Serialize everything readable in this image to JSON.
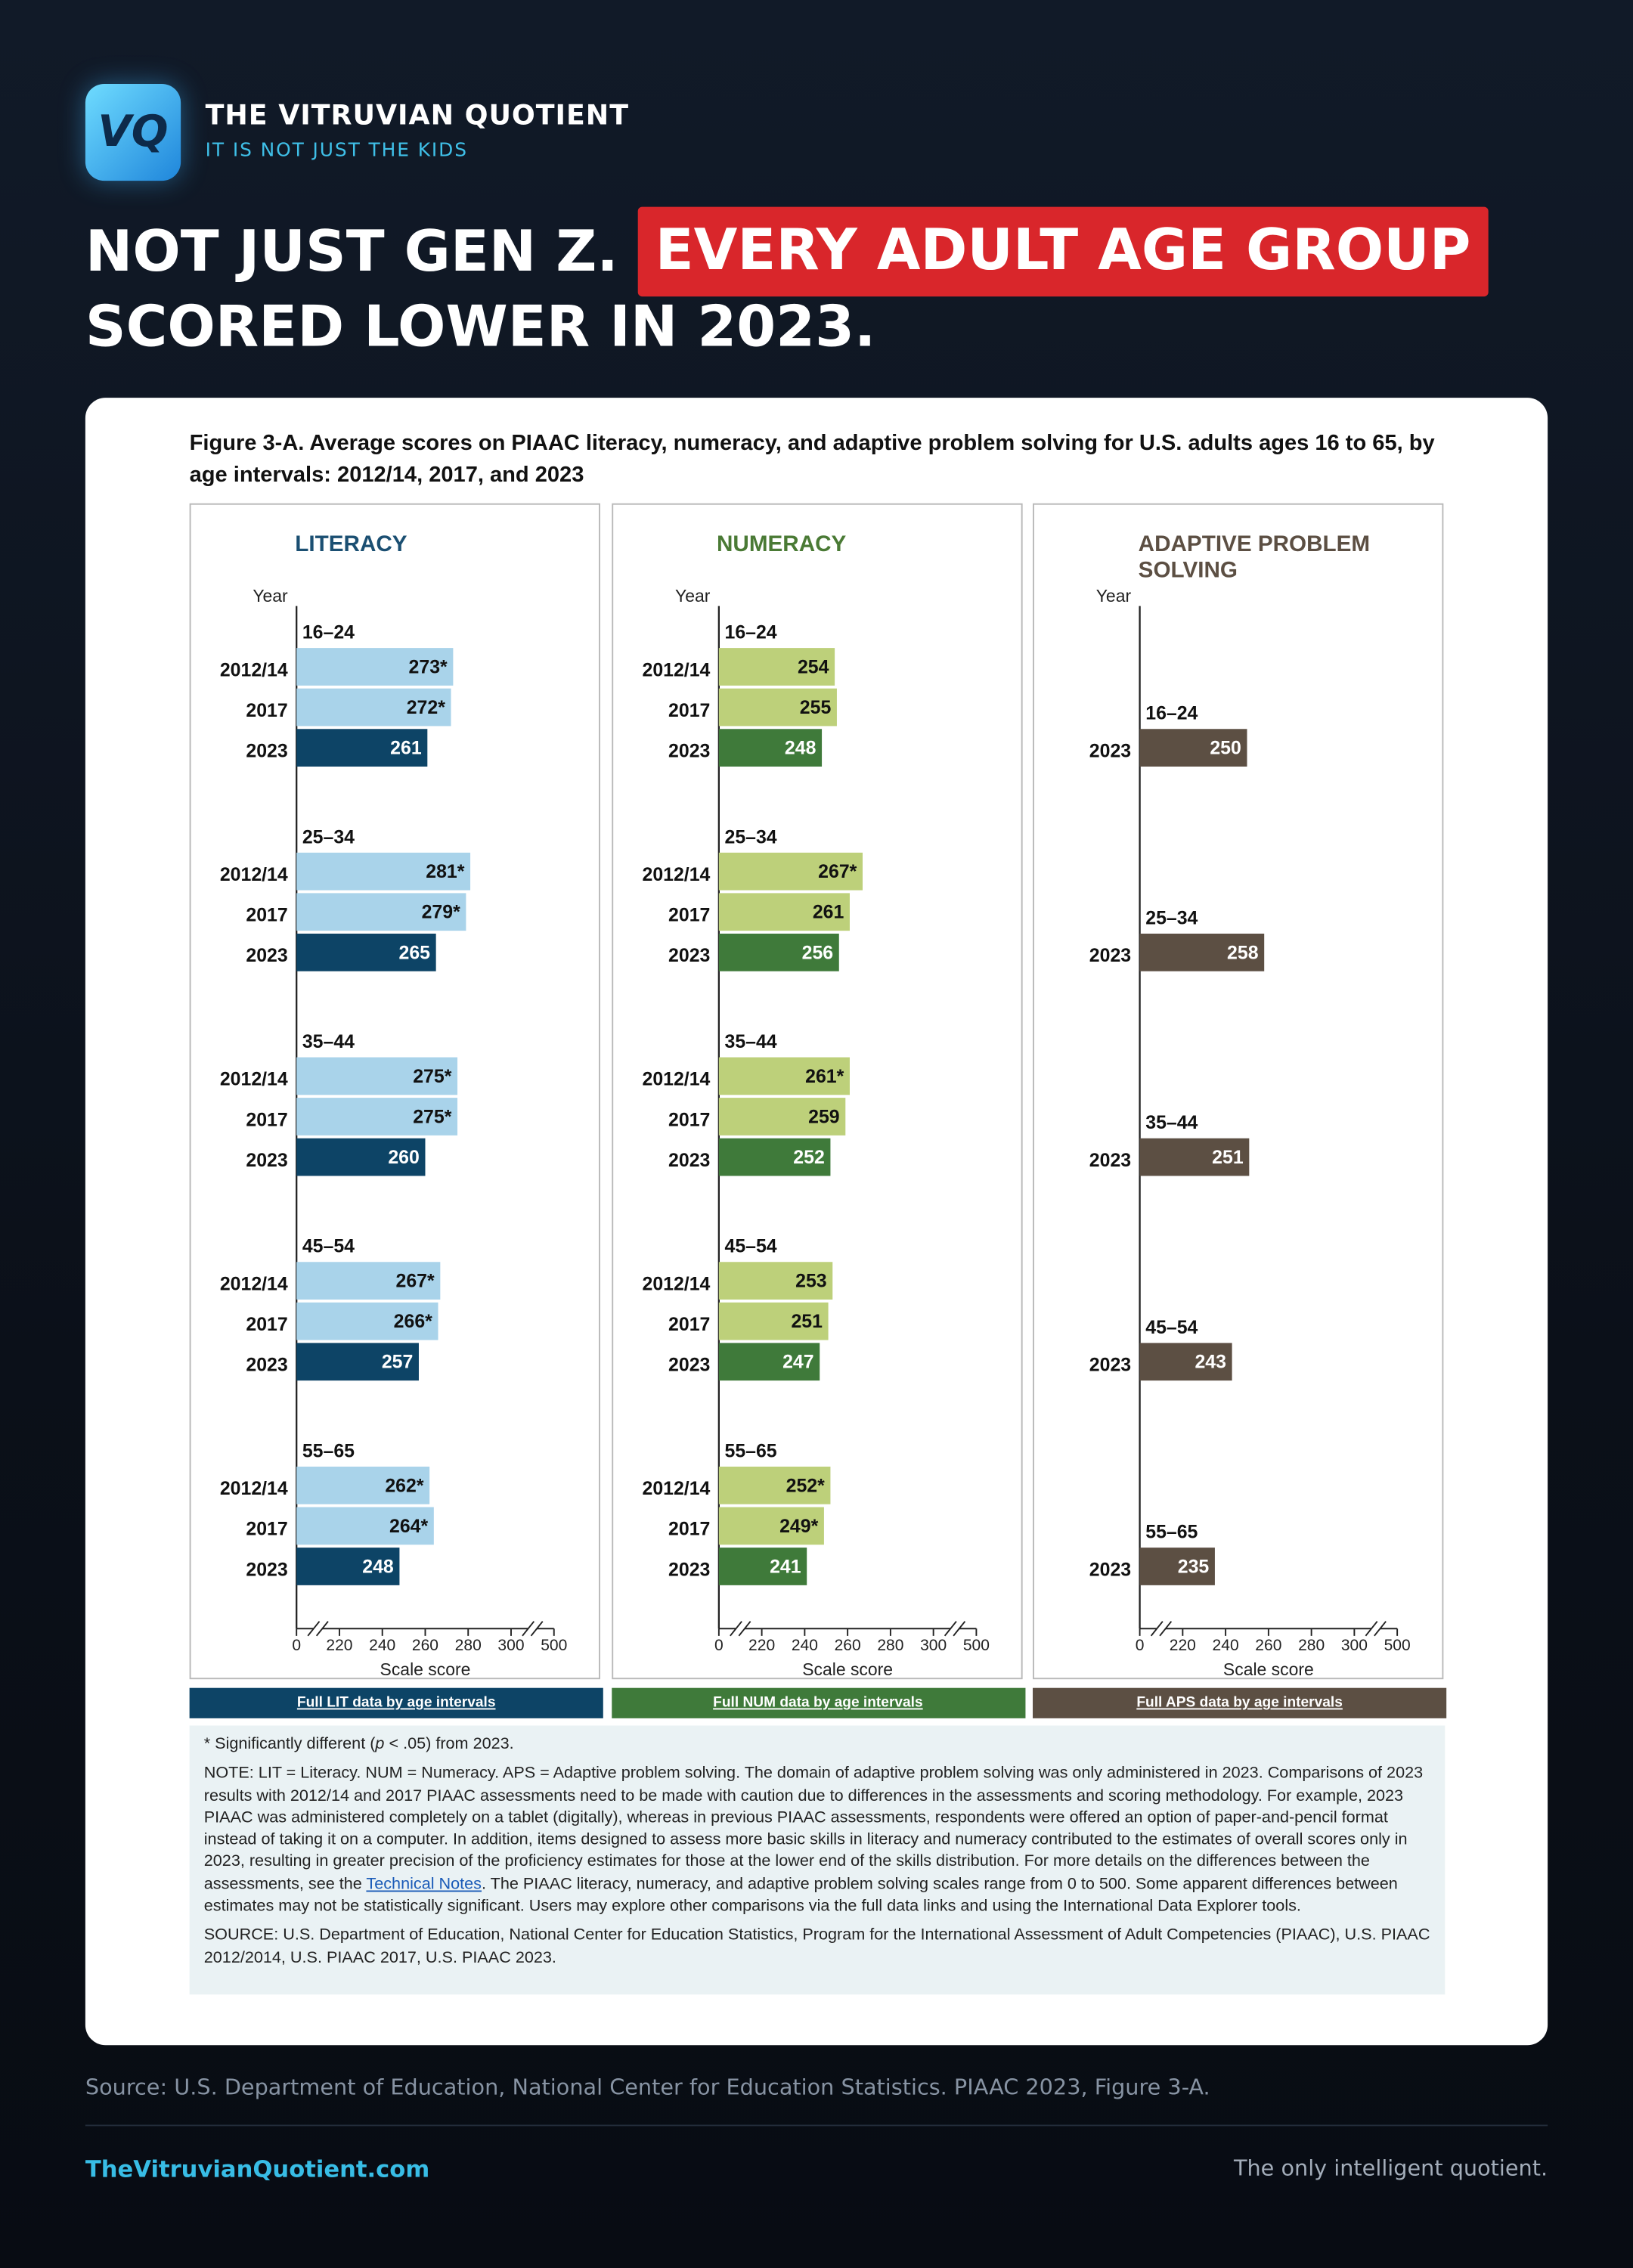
{
  "header": {
    "logo_text": "VQ",
    "brand": "THE VITRUVIAN QUOTIENT",
    "tagline": "IT IS NOT JUST THE KIDS",
    "headline_start": "NOT JUST GEN Z.",
    "headline_highlight": "EVERY ADULT AGE GROUP",
    "headline_end": "SCORED LOWER IN 2023."
  },
  "figure_title": "Figure 3-A. Average scores on PIAAC literacy, numeracy, and adaptive problem solving for U.S. adults ages 16 to 65, by age intervals: 2012/14, 2017, and 2023",
  "chart_data": [
    {
      "type": "bar",
      "orientation": "horizontal",
      "title": "LITERACY",
      "title_color": "#1b4f72",
      "y_label": "Year",
      "x_label": "Scale score",
      "link": "Full LIT data by age intervals",
      "link_color": "#0d4466",
      "groups": [
        "16–24",
        "25–34",
        "35–44",
        "45–54",
        "55–65"
      ],
      "series": [
        {
          "name": "2012/14",
          "color": "#a9d3ea",
          "values": [
            273,
            281,
            275,
            267,
            262
          ],
          "value_labels": [
            "273*",
            "281*",
            "275*",
            "267*",
            "262*"
          ]
        },
        {
          "name": "2017",
          "color": "#a9d3ea",
          "values": [
            272,
            279,
            275,
            266,
            264
          ],
          "value_labels": [
            "272*",
            "279*",
            "275*",
            "266*",
            "264*"
          ]
        },
        {
          "name": "2023",
          "color": "#0d4466",
          "values": [
            261,
            265,
            260,
            257,
            248
          ]
        }
      ],
      "xlim": [
        0,
        500
      ],
      "xticks": [
        0,
        220,
        240,
        260,
        280,
        300,
        500
      ],
      "axis_breaks": [
        [
          0,
          220
        ],
        [
          300,
          500
        ]
      ]
    },
    {
      "type": "bar",
      "orientation": "horizontal",
      "title": "NUMERACY",
      "title_color": "#4a7a35",
      "y_label": "Year",
      "x_label": "Scale score",
      "link": "Full NUM data by age intervals",
      "link_color": "#3f7a3a",
      "groups": [
        "16–24",
        "25–34",
        "35–44",
        "45–54",
        "55–65"
      ],
      "series": [
        {
          "name": "2012/14",
          "color": "#bdd07a",
          "values": [
            254,
            267,
            261,
            253,
            252
          ],
          "value_labels": [
            "254",
            "267*",
            "261*",
            "253",
            "252*"
          ]
        },
        {
          "name": "2017",
          "color": "#bdd07a",
          "values": [
            255,
            261,
            259,
            251,
            249
          ],
          "value_labels": [
            "255",
            "261",
            "259",
            "251",
            "249*"
          ]
        },
        {
          "name": "2023",
          "color": "#3f7a3a",
          "values": [
            248,
            256,
            252,
            247,
            241
          ]
        }
      ],
      "xlim": [
        0,
        500
      ],
      "xticks": [
        0,
        220,
        240,
        260,
        280,
        300,
        500
      ],
      "axis_breaks": [
        [
          0,
          220
        ],
        [
          300,
          500
        ]
      ]
    },
    {
      "type": "bar",
      "orientation": "horizontal",
      "title": "ADAPTIVE PROBLEM SOLVING",
      "title_color": "#5c4f43",
      "y_label": "Year",
      "x_label": "Scale score",
      "link": "Full APS data by age intervals",
      "link_color": "#5c4f43",
      "groups": [
        "16–24",
        "25–34",
        "35–44",
        "45–54",
        "55–65"
      ],
      "series": [
        {
          "name": "2023",
          "color": "#5c4f43",
          "values": [
            250,
            258,
            251,
            243,
            235
          ]
        }
      ],
      "xlim": [
        0,
        500
      ],
      "xticks": [
        0,
        220,
        240,
        260,
        280,
        300,
        500
      ],
      "axis_breaks": [
        [
          0,
          220
        ],
        [
          300,
          500
        ]
      ]
    }
  ],
  "notes": {
    "significance_before": "* Significantly different (",
    "significance_italic": "p",
    "significance_after": " < .05) from 2023.",
    "note_before": "NOTE: LIT = Literacy. NUM = Numeracy. APS = Adaptive problem solving. The domain of adaptive problem solving was only administered in 2023. Comparisons of 2023 results with 2012/14 and 2017 PIAAC assessments need to be made with caution due to differences in the assessments and scoring methodology. For example, 2023 PIAAC was administered completely on a tablet (digitally), whereas in previous PIAAC assessments, respondents were offered an option of paper-and-pencil format instead of taking it on a computer. In addition, items designed to assess more basic skills in literacy and numeracy contributed to the estimates of overall scores only in 2023, resulting in greater precision of the proficiency estimates for those at the lower end of the skills distribution. For more details on the differences between the assessments, see the ",
    "note_link": "Technical Notes",
    "note_after": ". The PIAAC literacy, numeracy, and adaptive problem solving scales range from 0 to 500. Some apparent differences between estimates may not be statistically significant. Users may explore other comparisons via the full data links and using the International Data Explorer tools.",
    "source": "SOURCE: U.S. Department of Education, National Center for Education Statistics, Program for the International Assessment of Adult Competencies (PIAAC), U.S. PIAAC 2012/2014, U.S. PIAAC 2017, U.S. PIAAC 2023."
  },
  "footer": {
    "source": "Source: U.S. Department of Education, National Center for Education Statistics. PIAAC 2023, Figure 3-A.",
    "site": "TheVitruvianQuotient.com",
    "slogan": "The only intelligent quotient."
  }
}
